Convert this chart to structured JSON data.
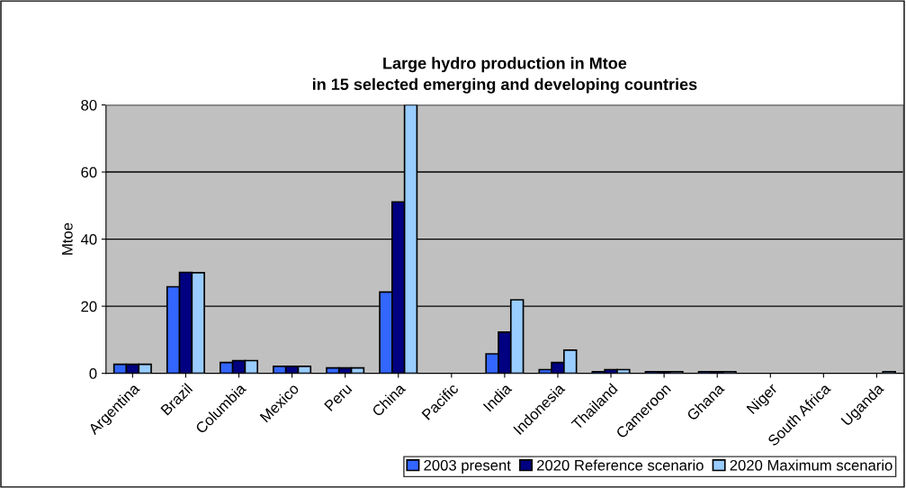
{
  "chart_data": {
    "type": "bar",
    "title": "Large hydro production in Mtoe\nin 15 selected emerging and developing countries",
    "ylabel": "Mtoe",
    "categories": [
      "Argentina",
      "Brazil",
      "Columbia",
      "Mexico",
      "Peru",
      "China",
      "Pacific",
      "India",
      "Indonesia",
      "Thailand",
      "Cameroon",
      "Ghana",
      "Niger",
      "South Africa",
      "Uganda"
    ],
    "series": [
      {
        "name": "2003 present",
        "color": "#3366ff",
        "values": [
          2.7,
          25.8,
          3.2,
          2.1,
          1.6,
          24.2,
          null,
          5.8,
          1.1,
          0.5,
          0.5,
          0.5,
          null,
          null,
          null
        ]
      },
      {
        "name": "2020 Reference scenario",
        "color": "#000080",
        "values": [
          2.7,
          30.1,
          3.8,
          2.1,
          1.6,
          51.1,
          null,
          12.3,
          3.2,
          1.1,
          0.5,
          0.5,
          null,
          null,
          null
        ]
      },
      {
        "name": "2020 Maximum scenario",
        "color": "#99ccff",
        "values": [
          2.7,
          30,
          3.8,
          2.1,
          1.6,
          80,
          null,
          21.9,
          6.9,
          1.1,
          0.5,
          0.5,
          null,
          null,
          0.5
        ]
      }
    ],
    "ylim": [
      0,
      80
    ],
    "yticks": [
      0,
      20,
      40,
      60,
      80
    ],
    "grid": "y",
    "legend": "bottom right"
  }
}
